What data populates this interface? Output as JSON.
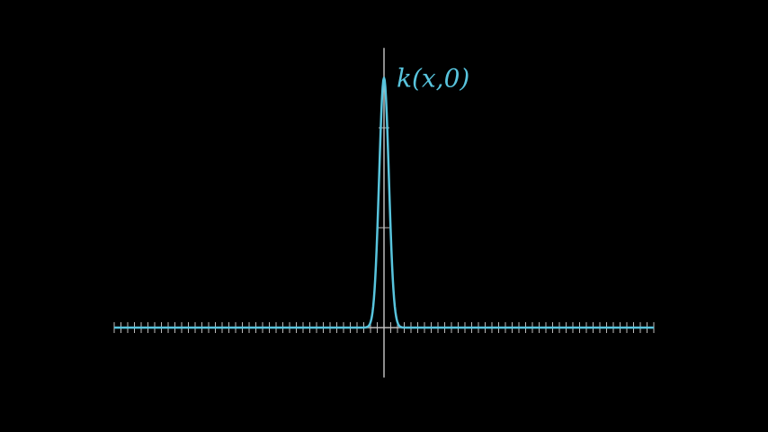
{
  "chart_data": {
    "type": "line",
    "title": "",
    "xlabel": "",
    "ylabel": "",
    "xlim": [
      -10,
      10
    ],
    "ylim": [
      -1.1,
      1.4
    ],
    "x_tick_step": 0.25,
    "y_ticks": [
      0.5,
      1.0
    ],
    "grid": false,
    "series": [
      {
        "name": "k(x, 0)",
        "function": "gaussian",
        "amplitude": 1.25,
        "center": 0,
        "sigma": 0.18,
        "sample_range": [
          -10,
          10
        ],
        "samples": 801
      }
    ],
    "curve_label": "k(x,0)",
    "colors": {
      "background": "#000000",
      "axis": "#bbbbbb",
      "curve": "#58c4dd"
    }
  }
}
